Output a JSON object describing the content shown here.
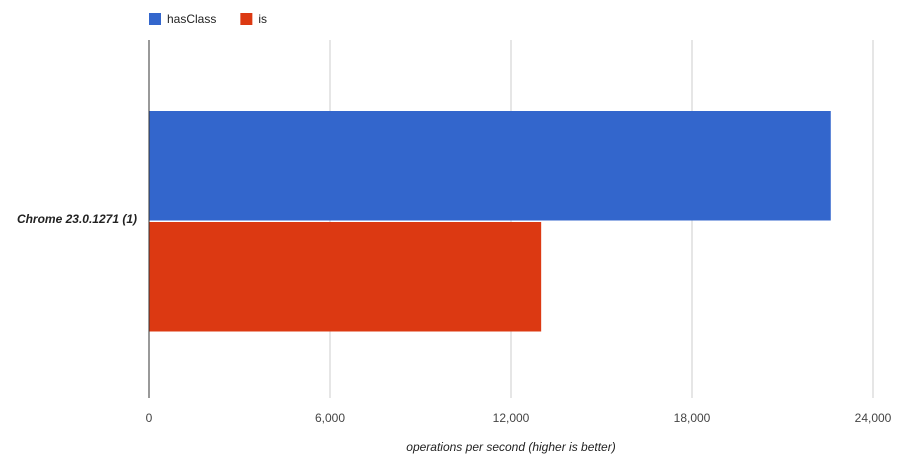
{
  "chart_data": {
    "type": "bar",
    "orientation": "horizontal",
    "categories": [
      "Chrome 23.0.1271 (1)"
    ],
    "series": [
      {
        "name": "hasClass",
        "color": "#3366cc",
        "values": [
          22600
        ]
      },
      {
        "name": "is",
        "color": "#dc3912",
        "values": [
          13000
        ]
      }
    ],
    "xlabel": "operations per second (higher is better)",
    "ylabel": "",
    "xlim": [
      0,
      24000
    ],
    "xticks": [
      0,
      6000,
      12000,
      18000,
      24000
    ],
    "xtick_labels": [
      "0",
      "6,000",
      "12,000",
      "18,000",
      "24,000"
    ],
    "grid": true,
    "legend_position": "top-left"
  }
}
